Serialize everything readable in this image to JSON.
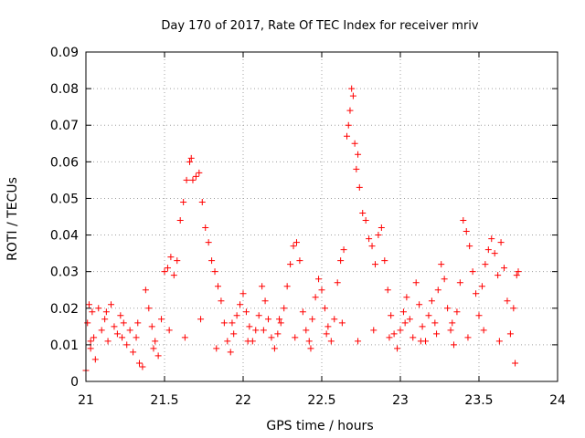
{
  "chart_data": {
    "type": "scatter",
    "title": "Day 170 of 2017, Rate Of TEC Index for receiver mriv",
    "xlabel": "GPS time / hours",
    "ylabel": "ROTI / TECUs",
    "xlim": [
      21,
      24
    ],
    "ylim": [
      0,
      0.09
    ],
    "x_ticks": [
      "21",
      "21.5",
      "22",
      "22.5",
      "23",
      "23.5",
      "24"
    ],
    "y_ticks": [
      "0",
      "0.01",
      "0.02",
      "0.03",
      "0.04",
      "0.05",
      "0.06",
      "0.07",
      "0.08",
      "0.09"
    ],
    "grid": true,
    "marker": "+",
    "series": [
      {
        "name": "ROTI",
        "color": "#ff0000",
        "points": [
          [
            21.0,
            0.003
          ],
          [
            21.01,
            0.016
          ],
          [
            21.02,
            0.021
          ],
          [
            21.03,
            0.009
          ],
          [
            21.04,
            0.019
          ],
          [
            21.05,
            0.012
          ],
          [
            21.06,
            0.006
          ],
          [
            21.08,
            0.02
          ],
          [
            21.1,
            0.014
          ],
          [
            21.12,
            0.017
          ],
          [
            21.14,
            0.011
          ],
          [
            21.16,
            0.021
          ],
          [
            21.18,
            0.015
          ],
          [
            21.2,
            0.013
          ],
          [
            21.22,
            0.018
          ],
          [
            21.24,
            0.016
          ],
          [
            21.26,
            0.01
          ],
          [
            21.28,
            0.014
          ],
          [
            21.3,
            0.008
          ],
          [
            21.32,
            0.012
          ],
          [
            21.34,
            0.005
          ],
          [
            21.36,
            0.004
          ],
          [
            21.38,
            0.025
          ],
          [
            21.4,
            0.02
          ],
          [
            21.42,
            0.015
          ],
          [
            21.44,
            0.011
          ],
          [
            21.46,
            0.007
          ],
          [
            21.48,
            0.017
          ],
          [
            21.5,
            0.03
          ],
          [
            21.52,
            0.031
          ],
          [
            21.54,
            0.034
          ],
          [
            21.56,
            0.029
          ],
          [
            21.58,
            0.033
          ],
          [
            21.6,
            0.044
          ],
          [
            21.62,
            0.049
          ],
          [
            21.64,
            0.055
          ],
          [
            21.66,
            0.06
          ],
          [
            21.67,
            0.061
          ],
          [
            21.68,
            0.055
          ],
          [
            21.7,
            0.056
          ],
          [
            21.72,
            0.057
          ],
          [
            21.74,
            0.049
          ],
          [
            21.76,
            0.042
          ],
          [
            21.78,
            0.038
          ],
          [
            21.8,
            0.033
          ],
          [
            21.82,
            0.03
          ],
          [
            21.84,
            0.026
          ],
          [
            21.86,
            0.022
          ],
          [
            21.88,
            0.016
          ],
          [
            21.9,
            0.011
          ],
          [
            21.92,
            0.008
          ],
          [
            21.94,
            0.013
          ],
          [
            21.96,
            0.018
          ],
          [
            21.98,
            0.021
          ],
          [
            22.0,
            0.024
          ],
          [
            22.02,
            0.019
          ],
          [
            22.04,
            0.015
          ],
          [
            22.06,
            0.011
          ],
          [
            22.08,
            0.014
          ],
          [
            22.1,
            0.018
          ],
          [
            22.12,
            0.026
          ],
          [
            22.14,
            0.022
          ],
          [
            22.16,
            0.017
          ],
          [
            22.18,
            0.012
          ],
          [
            22.2,
            0.009
          ],
          [
            22.22,
            0.013
          ],
          [
            22.24,
            0.016
          ],
          [
            22.26,
            0.02
          ],
          [
            22.28,
            0.026
          ],
          [
            22.3,
            0.032
          ],
          [
            22.32,
            0.037
          ],
          [
            22.34,
            0.038
          ],
          [
            22.36,
            0.033
          ],
          [
            22.38,
            0.019
          ],
          [
            22.4,
            0.014
          ],
          [
            22.42,
            0.011
          ],
          [
            22.44,
            0.017
          ],
          [
            22.46,
            0.023
          ],
          [
            22.48,
            0.028
          ],
          [
            22.5,
            0.025
          ],
          [
            22.52,
            0.02
          ],
          [
            22.54,
            0.015
          ],
          [
            22.56,
            0.011
          ],
          [
            22.58,
            0.017
          ],
          [
            22.6,
            0.027
          ],
          [
            22.62,
            0.033
          ],
          [
            22.64,
            0.036
          ],
          [
            22.66,
            0.067
          ],
          [
            22.67,
            0.07
          ],
          [
            22.68,
            0.074
          ],
          [
            22.69,
            0.08
          ],
          [
            22.7,
            0.078
          ],
          [
            22.71,
            0.065
          ],
          [
            22.72,
            0.058
          ],
          [
            22.73,
            0.062
          ],
          [
            22.74,
            0.053
          ],
          [
            22.76,
            0.046
          ],
          [
            22.78,
            0.044
          ],
          [
            22.8,
            0.039
          ],
          [
            22.82,
            0.037
          ],
          [
            22.84,
            0.032
          ],
          [
            22.86,
            0.04
          ],
          [
            22.88,
            0.042
          ],
          [
            22.9,
            0.033
          ],
          [
            22.92,
            0.025
          ],
          [
            22.94,
            0.018
          ],
          [
            22.96,
            0.013
          ],
          [
            22.98,
            0.009
          ],
          [
            23.0,
            0.014
          ],
          [
            23.02,
            0.019
          ],
          [
            23.04,
            0.023
          ],
          [
            23.06,
            0.017
          ],
          [
            23.08,
            0.012
          ],
          [
            23.1,
            0.027
          ],
          [
            23.12,
            0.021
          ],
          [
            23.14,
            0.015
          ],
          [
            23.16,
            0.011
          ],
          [
            23.18,
            0.018
          ],
          [
            23.2,
            0.022
          ],
          [
            23.22,
            0.016
          ],
          [
            23.24,
            0.025
          ],
          [
            23.26,
            0.032
          ],
          [
            23.28,
            0.028
          ],
          [
            23.3,
            0.02
          ],
          [
            23.32,
            0.014
          ],
          [
            23.34,
            0.01
          ],
          [
            23.36,
            0.019
          ],
          [
            23.38,
            0.027
          ],
          [
            23.4,
            0.044
          ],
          [
            23.42,
            0.041
          ],
          [
            23.44,
            0.037
          ],
          [
            23.46,
            0.03
          ],
          [
            23.48,
            0.024
          ],
          [
            23.5,
            0.018
          ],
          [
            23.52,
            0.026
          ],
          [
            23.54,
            0.032
          ],
          [
            23.56,
            0.036
          ],
          [
            23.58,
            0.039
          ],
          [
            23.6,
            0.035
          ],
          [
            23.62,
            0.029
          ],
          [
            23.64,
            0.038
          ],
          [
            23.66,
            0.031
          ],
          [
            23.68,
            0.022
          ],
          [
            23.7,
            0.013
          ],
          [
            23.72,
            0.02
          ],
          [
            23.74,
            0.029
          ],
          [
            23.75,
            0.03
          ],
          [
            21.03,
            0.011
          ],
          [
            21.13,
            0.019
          ],
          [
            21.23,
            0.012
          ],
          [
            21.33,
            0.016
          ],
          [
            21.43,
            0.009
          ],
          [
            21.53,
            0.014
          ],
          [
            21.63,
            0.012
          ],
          [
            21.73,
            0.017
          ],
          [
            21.83,
            0.009
          ],
          [
            21.93,
            0.016
          ],
          [
            22.03,
            0.011
          ],
          [
            22.13,
            0.014
          ],
          [
            22.23,
            0.017
          ],
          [
            22.33,
            0.012
          ],
          [
            22.43,
            0.009
          ],
          [
            22.53,
            0.013
          ],
          [
            22.63,
            0.016
          ],
          [
            22.73,
            0.011
          ],
          [
            22.83,
            0.014
          ],
          [
            22.93,
            0.012
          ],
          [
            23.03,
            0.016
          ],
          [
            23.13,
            0.011
          ],
          [
            23.23,
            0.013
          ],
          [
            23.33,
            0.016
          ],
          [
            23.43,
            0.012
          ],
          [
            23.53,
            0.014
          ],
          [
            23.63,
            0.011
          ],
          [
            23.73,
            0.005
          ]
        ]
      }
    ]
  }
}
